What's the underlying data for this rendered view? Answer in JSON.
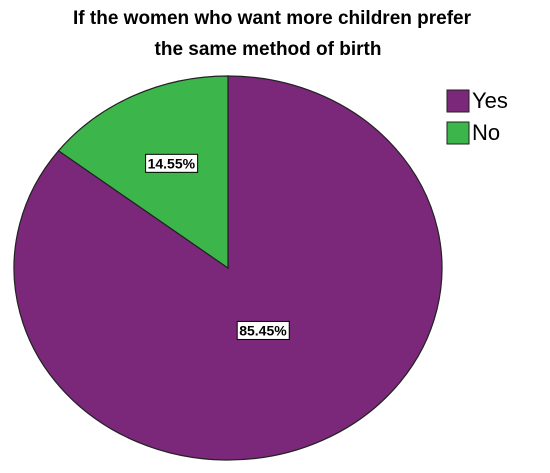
{
  "chart_data": {
    "type": "pie",
    "title": [
      "If the women who want more children prefer",
      "the same method of birth"
    ],
    "categories": [
      "Yes",
      "No"
    ],
    "values": [
      85.45,
      14.55
    ],
    "value_labels": [
      "85.45%",
      "14.55%"
    ],
    "colors": [
      "#7b287b",
      "#3cb64a"
    ],
    "legend": "top-right"
  }
}
